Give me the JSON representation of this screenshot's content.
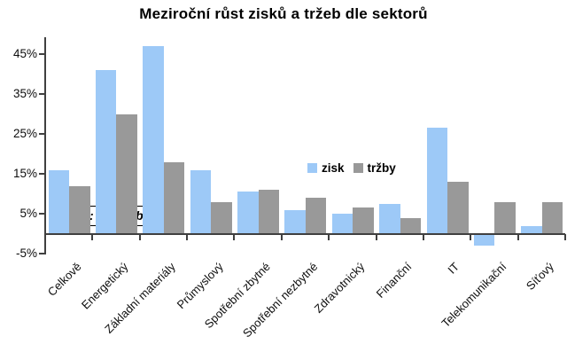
{
  "title": "Meziroční růst zisků a tržeb dle sektorů",
  "source_note": "Zdroj: Bloomberg",
  "legend": {
    "items": [
      {
        "label": "zisk",
        "color": "#9DC9F7"
      },
      {
        "label": "tržby",
        "color": "#999999"
      }
    ]
  },
  "colors": {
    "axis": "#404040",
    "background": "#FFFFFF",
    "text": "#000000",
    "zisk_blue": "#9DC9F7",
    "trzby_gray": "#999999"
  },
  "chart_data": {
    "type": "bar",
    "title": "Meziroční růst zisků a tržeb dle sektorů",
    "categories": [
      "Celkově",
      "Energetický",
      "Základní materiály",
      "Průmyslový",
      "Spotřební zbytné",
      "Spotřební nezbytné",
      "Zdravotnický",
      "Finanční",
      "IT",
      "Telekomunikační",
      "Síťový"
    ],
    "series": [
      {
        "name": "zisk",
        "color": "#9DC9F7",
        "values": [
          16,
          41,
          47,
          16,
          10.5,
          6,
          5,
          7.5,
          26.5,
          -3,
          2
        ]
      },
      {
        "name": "tržby",
        "color": "#999999",
        "values": [
          12,
          30,
          18,
          8,
          11,
          9,
          6.5,
          4,
          13,
          8,
          8
        ]
      }
    ],
    "xlabel": "",
    "ylabel": "",
    "unit": "%",
    "y_ticks": [
      45,
      35,
      25,
      15,
      5,
      -5
    ],
    "y_tick_labels": [
      "45%",
      "35%",
      "25%",
      "15%",
      "5%",
      "-5%"
    ],
    "ylim": [
      -5,
      49
    ],
    "grid": false,
    "legend_position": "inside top-center",
    "annotation": "Zdroj: Bloomberg"
  }
}
